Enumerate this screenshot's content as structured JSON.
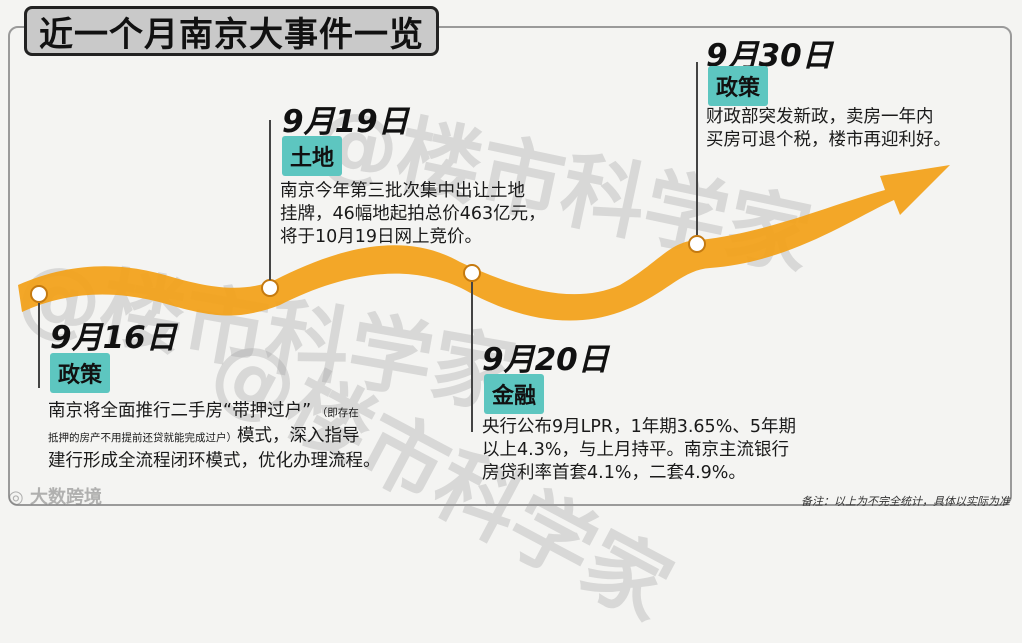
{
  "title": "近一个月南京大事件一览",
  "watermark": "@楼市科学家",
  "brand": "大数跨境",
  "note": "备注：以上为不完全统计，具体以实际为准",
  "colors": {
    "ribbon": "#f2a21c",
    "badge": "#5dc6c0"
  },
  "events": [
    {
      "date": "9月16日",
      "tag": "政策",
      "line1_main": "南京将全面推行二手房“带押过户”",
      "line1_small": "（即存在",
      "line2_small": "抵押的房产不用提前还贷就能完成过户）",
      "line2_main": "模式，深入指导",
      "line3": "建行形成全流程闭环模式，优化办理流程。"
    },
    {
      "date": "9月19日",
      "tag": "土地",
      "lines": [
        "南京今年第三批次集中出让土地",
        "挂牌，46幅地起拍总价463亿元，",
        "将于10月19日网上竞价。"
      ]
    },
    {
      "date": "9月20日",
      "tag": "金融",
      "lines": [
        "央行公布9月LPR，1年期3.65%、5年期",
        "以上4.3%，与上月持平。南京主流银行",
        "房贷利率首套4.1%，二套4.9%。"
      ]
    },
    {
      "date": "9月30日",
      "tag": "政策",
      "lines": [
        "财政部突发新政，卖房一年内",
        "买房可退个税，楼市再迎利好。"
      ]
    }
  ]
}
